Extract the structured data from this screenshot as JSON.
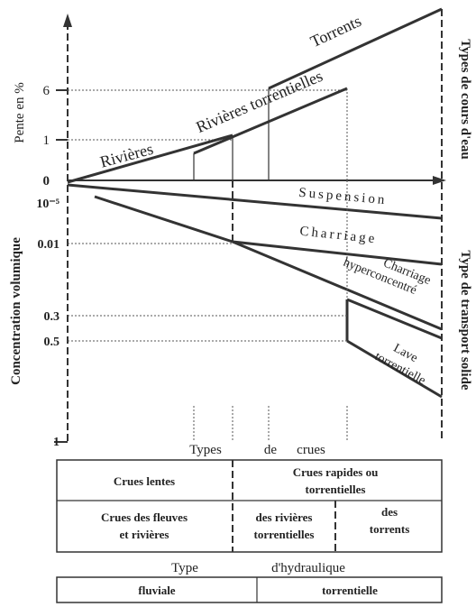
{
  "upper": {
    "axis_title": "Pente en %",
    "ticks": [
      "6",
      "1",
      "0"
    ],
    "side_title": "Types de cours d'eau",
    "streams": [
      "Rivières",
      "Rivières torrentielles",
      "Torrents"
    ]
  },
  "lower": {
    "axis_title": "Concentration volumique",
    "ticks": [
      "10⁻⁵",
      "0.01",
      "0.3",
      "0.5",
      "1"
    ],
    "side_title": "Type de transport solide",
    "transport": {
      "suspension": "Suspension",
      "charriage": "Charriage",
      "hyper": [
        "Charriage",
        "hyperconcentré"
      ],
      "lave": [
        "Lave",
        "torrentielle"
      ]
    }
  },
  "floods": {
    "title": [
      "Types",
      "de",
      "crues"
    ],
    "row1": [
      "Crues lentes",
      [
        "Crues rapides  ou",
        "torrentielles"
      ]
    ],
    "row2": [
      [
        "Crues des fleuves",
        "et rivières"
      ],
      [
        "des rivières",
        "torrentielles"
      ],
      [
        "des",
        "torrents"
      ]
    ]
  },
  "hydraulics": {
    "title": [
      "Type",
      "d'hydraulique"
    ],
    "cells": [
      "fluviale",
      "torrentielle"
    ]
  }
}
